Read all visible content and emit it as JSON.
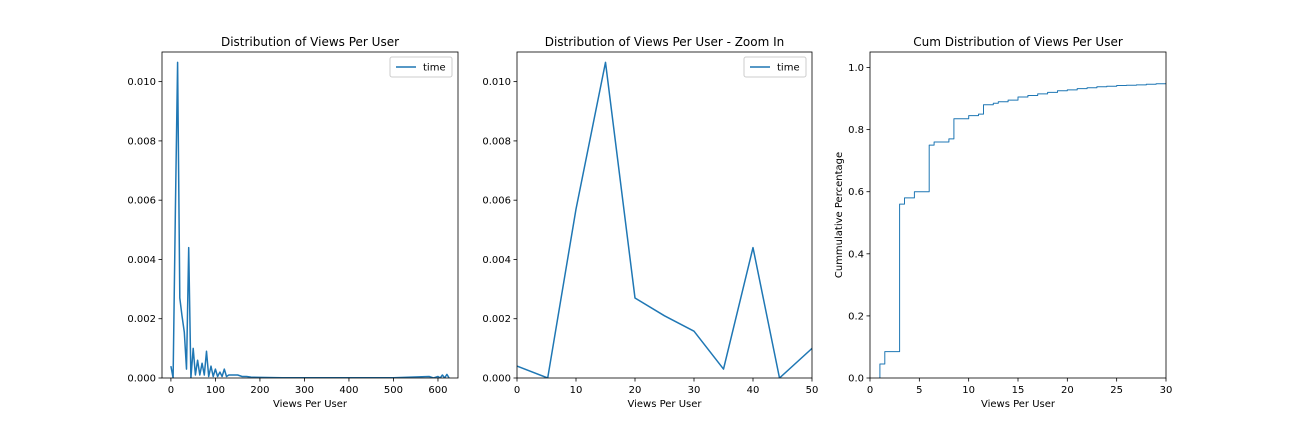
{
  "colors": {
    "series": "#1f77b4"
  },
  "chart_data": [
    {
      "type": "line",
      "title": "Distribution of Views Per User",
      "xlabel": "Views Per User",
      "ylabel": "",
      "xlim": [
        -20,
        645
      ],
      "ylim": [
        0,
        0.011
      ],
      "xticks": [
        0,
        100,
        200,
        300,
        400,
        500,
        600
      ],
      "yticks": [
        0,
        0.002,
        0.004,
        0.006,
        0.008,
        0.01
      ],
      "xtick_labels": [
        "0",
        "100",
        "200",
        "300",
        "400",
        "500",
        "600"
      ],
      "ytick_labels": [
        "0.000",
        "0.002",
        "0.004",
        "0.006",
        "0.008",
        "0.010"
      ],
      "legend": {
        "position": "upper right",
        "entries": [
          "time"
        ]
      },
      "series": [
        {
          "name": "time",
          "x": [
            0,
            5,
            10,
            15,
            20,
            25,
            30,
            35,
            40,
            45,
            50,
            55,
            60,
            65,
            70,
            75,
            80,
            85,
            90,
            95,
            100,
            105,
            110,
            115,
            120,
            125,
            130,
            140,
            150,
            160,
            170,
            180,
            200,
            250,
            300,
            400,
            500,
            580,
            590,
            600,
            605,
            610,
            615,
            620,
            625
          ],
          "y": [
            0.0004,
            0.0,
            0.0057,
            0.01065,
            0.0027,
            0.0021,
            0.00155,
            0.0003,
            0.0044,
            0.0,
            0.001,
            0.0001,
            0.0006,
            0.0001,
            0.0005,
            0.0001,
            0.0009,
            5e-05,
            0.0004,
            5e-05,
            0.0003,
            5e-05,
            0.0002,
            5e-05,
            0.0003,
            5e-05,
            0.0001,
            0.0001,
            0.0001,
            5e-05,
            5e-05,
            3e-05,
            2e-05,
            1e-05,
            1e-05,
            1e-05,
            1e-05,
            5e-05,
            0.0,
            5e-05,
            0.0,
            0.0001,
            0.0,
            0.00012,
            0.0
          ]
        }
      ]
    },
    {
      "type": "line",
      "title": "Distribution of Views Per User - Zoom In",
      "xlabel": "Views Per User",
      "ylabel": "",
      "xlim": [
        0,
        50
      ],
      "ylim": [
        0,
        0.011
      ],
      "xticks": [
        0,
        10,
        20,
        30,
        40,
        50
      ],
      "yticks": [
        0,
        0.002,
        0.004,
        0.006,
        0.008,
        0.01
      ],
      "xtick_labels": [
        "0",
        "10",
        "20",
        "30",
        "40",
        "50"
      ],
      "ytick_labels": [
        "0.000",
        "0.002",
        "0.004",
        "0.006",
        "0.008",
        "0.010"
      ],
      "legend": {
        "position": "upper right",
        "entries": [
          "time"
        ]
      },
      "series": [
        {
          "name": "time",
          "x": [
            0,
            5.2,
            10,
            15,
            20,
            25,
            30,
            35,
            40,
            44.5,
            50,
            55
          ],
          "y": [
            0.0004,
            0.0,
            0.0057,
            0.01065,
            0.0027,
            0.0021,
            0.00158,
            0.0003,
            0.0044,
            0.0,
            0.001,
            0.0001
          ]
        }
      ]
    },
    {
      "type": "line",
      "title": "Cum Distribution of Views Per User",
      "xlabel": "Views Per User",
      "ylabel": "Cummulative Percentage",
      "xlim": [
        0,
        30
      ],
      "ylim": [
        0,
        1.05
      ],
      "xticks": [
        0,
        5,
        10,
        15,
        20,
        25,
        30
      ],
      "yticks": [
        0,
        0.2,
        0.4,
        0.6,
        0.8,
        1.0
      ],
      "xtick_labels": [
        "0",
        "5",
        "10",
        "15",
        "20",
        "25",
        "30"
      ],
      "ytick_labels": [
        "0.0",
        "0.2",
        "0.4",
        "0.6",
        "0.8",
        "1.0"
      ],
      "step": true,
      "series": [
        {
          "x": [
            1,
            1.5,
            3,
            3.5,
            4.5,
            6,
            6.5,
            8,
            8.5,
            10,
            11,
            11.5,
            12.5,
            13,
            14,
            15,
            16,
            17,
            18,
            19,
            20,
            21,
            22,
            23,
            24,
            25,
            26,
            27,
            28,
            29,
            30
          ],
          "y": [
            0.045,
            0.085,
            0.56,
            0.58,
            0.6,
            0.75,
            0.76,
            0.77,
            0.835,
            0.845,
            0.85,
            0.88,
            0.885,
            0.89,
            0.895,
            0.905,
            0.91,
            0.915,
            0.92,
            0.925,
            0.928,
            0.932,
            0.935,
            0.938,
            0.94,
            0.942,
            0.943,
            0.944,
            0.946,
            0.948,
            0.95
          ]
        }
      ]
    }
  ]
}
